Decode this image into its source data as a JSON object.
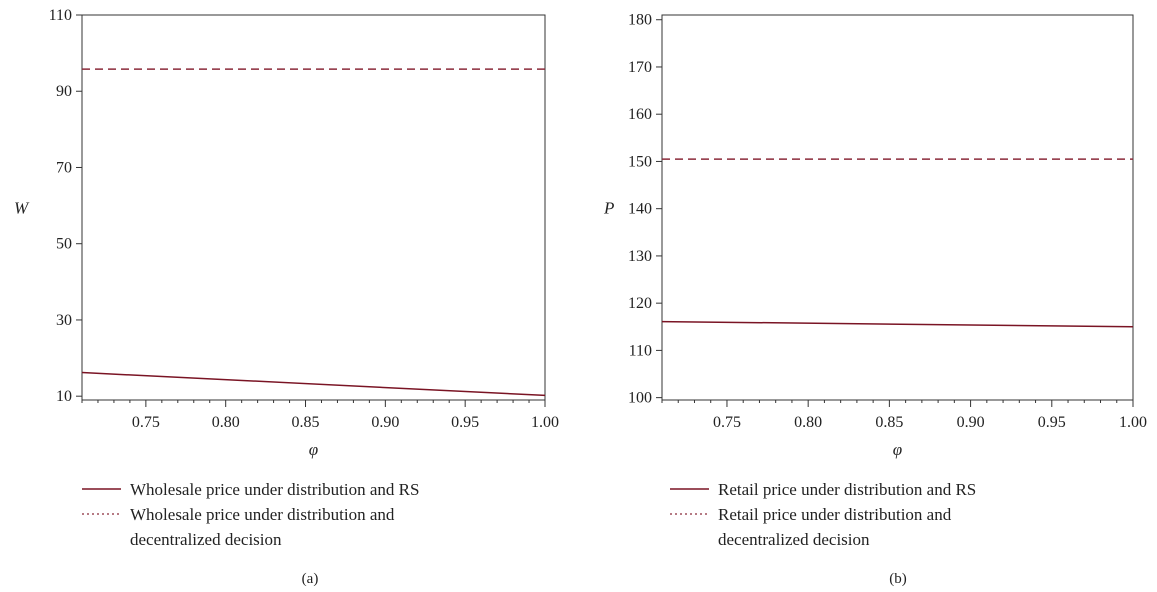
{
  "chart_data": [
    {
      "type": "line",
      "caption": "(a)",
      "xlabel": "φ",
      "ylabel": "W",
      "xlim": [
        0.71,
        1.0
      ],
      "ylim": [
        9,
        110
      ],
      "xticks": [
        0.75,
        0.8,
        0.85,
        0.9,
        0.95,
        1.0
      ],
      "xtick_labels": [
        "0.75",
        "0.80",
        "0.85",
        "0.90",
        "0.95",
        "1.00"
      ],
      "yticks": [
        10,
        30,
        50,
        70,
        90,
        110
      ],
      "ytick_labels": [
        "10",
        "30",
        "50",
        "70",
        "90",
        "110"
      ],
      "grid": false,
      "legend_position": "bottom",
      "series": [
        {
          "name": "Wholesale price under distribution and RS",
          "style": "solid",
          "color": "#7a1424",
          "x": [
            0.71,
            1.0
          ],
          "y": [
            16.2,
            10.2
          ]
        },
        {
          "name": "Wholesale price under distribution and decentralized decision",
          "style": "dashed",
          "color": "#8b2a3a",
          "x": [
            0.71,
            1.0
          ],
          "y": [
            95.8,
            95.8
          ]
        }
      ]
    },
    {
      "type": "line",
      "caption": "(b)",
      "xlabel": "φ",
      "ylabel": "P",
      "xlim": [
        0.71,
        1.0
      ],
      "ylim": [
        99.5,
        181
      ],
      "xticks": [
        0.75,
        0.8,
        0.85,
        0.9,
        0.95,
        1.0
      ],
      "xtick_labels": [
        "0.75",
        "0.80",
        "0.85",
        "0.90",
        "0.95",
        "1.00"
      ],
      "yticks": [
        100,
        110,
        120,
        130,
        140,
        150,
        160,
        170,
        180
      ],
      "ytick_labels": [
        "100",
        "110",
        "120",
        "130",
        "140",
        "150",
        "160",
        "170",
        "180"
      ],
      "grid": false,
      "legend_position": "bottom",
      "series": [
        {
          "name": "Retail price under distribution and RS",
          "style": "solid",
          "color": "#7a1424",
          "x": [
            0.71,
            1.0
          ],
          "y": [
            116.1,
            115.0
          ]
        },
        {
          "name": "Retail price under distribution and decentralized decision",
          "style": "dashed",
          "color": "#8b2a3a",
          "x": [
            0.71,
            1.0
          ],
          "y": [
            150.5,
            150.5
          ]
        }
      ]
    }
  ],
  "legends": [
    {
      "line1_label": "Wholesale price under distribution and RS",
      "line2_label_part1": "Wholesale price under distribution and",
      "line2_label_part2": "decentralized decision"
    },
    {
      "line1_label": "Retail price under distribution and RS",
      "line2_label_part1": "Retail price under distribution and",
      "line2_label_part2": "decentralized decision"
    }
  ]
}
